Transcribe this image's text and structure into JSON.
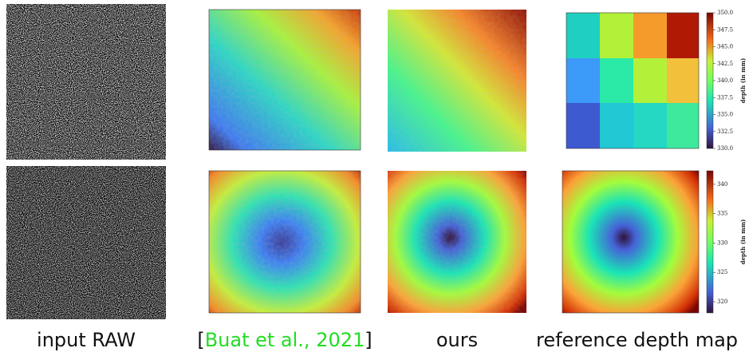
{
  "captions": [
    "input RAW",
    [
      "[",
      "Buat et al., 2021",
      "]"
    ],
    "ours",
    "reference depth map"
  ],
  "colorbars": [
    {
      "label": "depth (in mm)",
      "lim": [
        330,
        350
      ],
      "ticks": [
        {
          "value": 350,
          "label": "350.0"
        },
        {
          "value": 347.5,
          "label": "347.5"
        },
        {
          "value": 345,
          "label": "345.0"
        },
        {
          "value": 342.5,
          "label": "342.5"
        },
        {
          "value": 340,
          "label": "340.0"
        },
        {
          "value": 337.5,
          "label": "337.5"
        },
        {
          "value": 335,
          "label": "335.0"
        },
        {
          "value": 332.5,
          "label": "332.5"
        },
        {
          "value": 330,
          "label": "330.0"
        }
      ]
    },
    {
      "label": "depth (in mm)",
      "lim": [
        318.1,
        342.3
      ],
      "ticks": [
        340,
        335,
        330,
        325,
        320
      ]
    }
  ]
}
